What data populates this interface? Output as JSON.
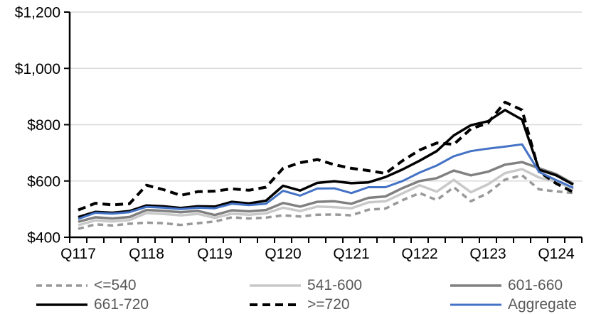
{
  "chart_data": {
    "type": "line",
    "title": "",
    "xlabel": "",
    "ylabel": "",
    "ylim": [
      400,
      1200
    ],
    "grid": "horizontal",
    "legend_position": "bottom",
    "y_ticks": [
      {
        "label": "$400",
        "value": 400
      },
      {
        "label": "$600",
        "value": 600
      },
      {
        "label": "$800",
        "value": 800
      },
      {
        "label": "$1,000",
        "value": 1000
      },
      {
        "label": "$1,200",
        "value": 1200
      }
    ],
    "x_tick_labels": [
      "Q117",
      "Q118",
      "Q119",
      "Q120",
      "Q121",
      "Q122",
      "Q123",
      "Q124"
    ],
    "x_categories": [
      "Q117",
      "Q217",
      "Q317",
      "Q417",
      "Q118",
      "Q218",
      "Q318",
      "Q418",
      "Q119",
      "Q219",
      "Q319",
      "Q419",
      "Q120",
      "Q220",
      "Q320",
      "Q420",
      "Q121",
      "Q221",
      "Q321",
      "Q421",
      "Q122",
      "Q222",
      "Q322",
      "Q422",
      "Q123",
      "Q223",
      "Q323",
      "Q423",
      "Q124",
      "Q224"
    ],
    "series": [
      {
        "name": "<=540",
        "color": "#999999",
        "dash": "8 6",
        "width": 3.5,
        "values": [
          430,
          446,
          442,
          448,
          452,
          450,
          444,
          450,
          456,
          471,
          467,
          470,
          478,
          474,
          480,
          481,
          478,
          498,
          502,
          532,
          557,
          532,
          578,
          528,
          557,
          605,
          620,
          570,
          563,
          557
        ]
      },
      {
        "name": "541-600",
        "color": "#C9C9C9",
        "dash": "",
        "width": 3.5,
        "values": [
          443,
          460,
          456,
          461,
          486,
          483,
          478,
          483,
          469,
          484,
          480,
          485,
          505,
          493,
          509,
          507,
          503,
          524,
          528,
          556,
          585,
          562,
          604,
          560,
          588,
          628,
          642,
          612,
          598,
          570
        ]
      },
      {
        "name": "601-660",
        "color": "#808080",
        "dash": "",
        "width": 3.5,
        "values": [
          455,
          471,
          467,
          472,
          497,
          494,
          489,
          494,
          479,
          496,
          492,
          497,
          522,
          509,
          526,
          528,
          519,
          540,
          545,
          575,
          600,
          610,
          637,
          620,
          633,
          658,
          667,
          645,
          624,
          590
        ]
      },
      {
        "name": "661-720",
        "color": "#000000",
        "dash": "",
        "width": 3.5,
        "values": [
          472,
          490,
          487,
          493,
          513,
          510,
          504,
          510,
          509,
          526,
          520,
          530,
          583,
          566,
          593,
          599,
          592,
          595,
          614,
          641,
          672,
          706,
          762,
          798,
          812,
          852,
          818,
          640,
          620,
          587
        ]
      },
      {
        "name": ">=720",
        "color": "#000000",
        "dash": "11 7",
        "width": 4,
        "values": [
          497,
          521,
          515,
          519,
          585,
          569,
          549,
          562,
          564,
          572,
          567,
          578,
          645,
          665,
          676,
          658,
          645,
          637,
          627,
          672,
          710,
          735,
          730,
          785,
          806,
          880,
          852,
          633,
          591,
          560
        ]
      },
      {
        "name": "Aggregate",
        "color": "#4472C4",
        "dash": "",
        "width": 3,
        "values": [
          465,
          487,
          484,
          489,
          508,
          505,
          500,
          505,
          503,
          519,
          514,
          519,
          565,
          548,
          573,
          574,
          557,
          578,
          578,
          600,
          630,
          655,
          688,
          706,
          715,
          722,
          730,
          632,
          603,
          576
        ]
      }
    ]
  }
}
